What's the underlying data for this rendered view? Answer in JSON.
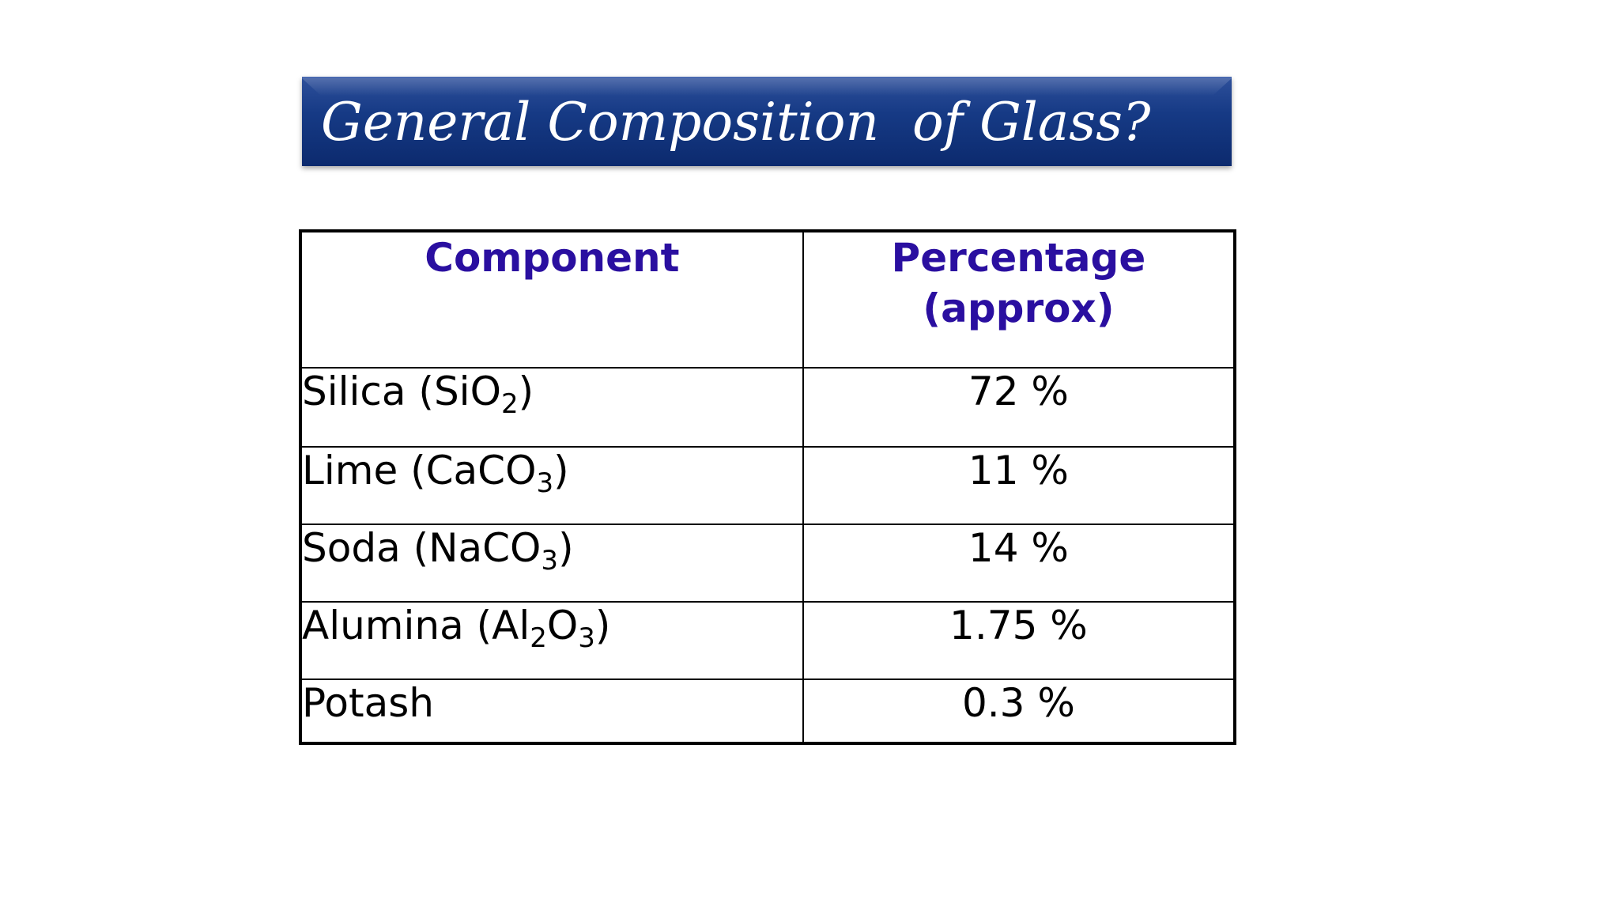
{
  "title": "General Composition  of Glass?",
  "table": {
    "headers": {
      "component": "Component",
      "percentage_line1": "Percentage",
      "percentage_line2": "(approx)"
    },
    "rows": [
      {
        "name_pre": "Silica (SiO",
        "sub1": "2",
        "mid": "",
        "sub2": "",
        "name_post": ")",
        "value": "72 %"
      },
      {
        "name_pre": "Lime (CaCO",
        "sub1": "3",
        "mid": "",
        "sub2": "",
        "name_post": ")",
        "value": "11 %"
      },
      {
        "name_pre": "Soda (NaCO",
        "sub1": "3",
        "mid": "",
        "sub2": "",
        "name_post": ")",
        "value": "14 %"
      },
      {
        "name_pre": "Alumina (Al",
        "sub1": "2",
        "mid": "O",
        "sub2": "3",
        "name_post": ")",
        "value": "1.75 %"
      },
      {
        "name_pre": "Potash",
        "sub1": "",
        "mid": "",
        "sub2": "",
        "name_post": "",
        "value": "0.3 %"
      }
    ]
  }
}
